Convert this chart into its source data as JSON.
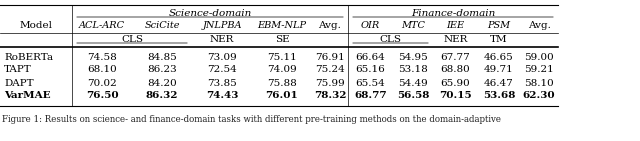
{
  "title_science": "Science-domain",
  "title_finance": "Finance-domain",
  "col_headers_science": [
    "ACL-ARC",
    "SciCite",
    "JNLPBA",
    "EBM-NLP"
  ],
  "col_headers_finance": [
    "OIR",
    "MTC",
    "IEE",
    "PSM"
  ],
  "avg_label": "Avg.",
  "model_col": "Model",
  "models": [
    "RoBERTa",
    "TAPT",
    "DAPT",
    "VarMAE"
  ],
  "science_data": [
    [
      "74.58",
      "84.85",
      "73.09",
      "75.11",
      "76.91"
    ],
    [
      "68.10",
      "86.23",
      "72.54",
      "74.09",
      "75.24"
    ],
    [
      "70.02",
      "84.20",
      "73.85",
      "75.88",
      "75.99"
    ],
    [
      "76.50",
      "86.32",
      "74.43",
      "76.01",
      "78.32"
    ]
  ],
  "finance_data": [
    [
      "66.64",
      "54.95",
      "67.77",
      "46.65",
      "59.00"
    ],
    [
      "65.16",
      "53.18",
      "68.80",
      "49.71",
      "59.21"
    ],
    [
      "65.54",
      "54.49",
      "65.90",
      "46.47",
      "58.10"
    ],
    [
      "68.77",
      "56.58",
      "70.15",
      "53.68",
      "62.30"
    ]
  ],
  "bold_row": 3,
  "bg_color": "#ffffff",
  "caption": "Figure 1: Results on science- and finance-domain tasks with different pre-training methods on the domain-adaptive"
}
